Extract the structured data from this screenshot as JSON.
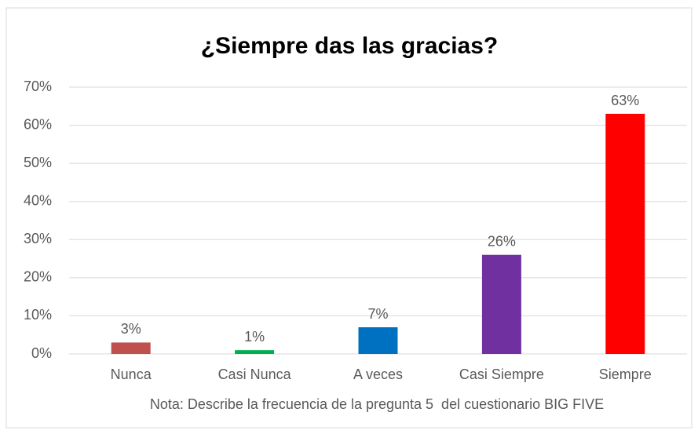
{
  "chart_data": {
    "type": "bar",
    "title": "¿Siempre das las gracias?",
    "categories": [
      "Nunca",
      "Casi Nunca",
      "A veces",
      "Casi Siempre",
      "Siempre"
    ],
    "values": [
      3,
      1,
      7,
      26,
      63
    ],
    "value_labels": [
      "3%",
      "1%",
      "7%",
      "26%",
      "63%"
    ],
    "colors": [
      "#c0504d",
      "#00b050",
      "#0070c0",
      "#7030a0",
      "#ff0000"
    ],
    "ylim": [
      0,
      70
    ],
    "yticks": [
      {
        "value": 0,
        "label": "0%"
      },
      {
        "value": 10,
        "label": "10%"
      },
      {
        "value": 20,
        "label": "20%"
      },
      {
        "value": 30,
        "label": "30%"
      },
      {
        "value": 40,
        "label": "40%"
      },
      {
        "value": 50,
        "label": "50%"
      },
      {
        "value": 60,
        "label": "60%"
      },
      {
        "value": 70,
        "label": "70%"
      }
    ],
    "grid": true,
    "annotation": "Nota: Describe la frecuencia de la pregunta 5  del cuestionario BIG FIVE"
  }
}
